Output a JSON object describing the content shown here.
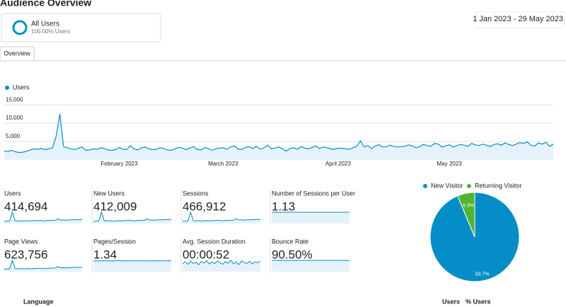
{
  "header": {
    "title": "Audience Overview",
    "segment": "All Users",
    "segment_sub": "100.00% Users",
    "date_range": "1 Jan 2023 - 29 May 2023",
    "tab": "Overview"
  },
  "chart_data": [
    {
      "type": "line",
      "categories": [
        null,
        null,
        null,
        null,
        null,
        null,
        null,
        null,
        null,
        null,
        null,
        null,
        null,
        null,
        null,
        null,
        null,
        null,
        null,
        null,
        null,
        null,
        null,
        null,
        null,
        null,
        null,
        null,
        null,
        null,
        null,
        "February 2023",
        null,
        null,
        null,
        null,
        null,
        null,
        null,
        null,
        null,
        null,
        null,
        null,
        null,
        null,
        null,
        null,
        null,
        null,
        null,
        null,
        null,
        null,
        null,
        null,
        null,
        null,
        null,
        "March 2023",
        null,
        null,
        null,
        null,
        null,
        null,
        null,
        null,
        null,
        null,
        null,
        null,
        null,
        null,
        null,
        null,
        null,
        null,
        null,
        null,
        null,
        null,
        null,
        null,
        null,
        null,
        null,
        null,
        null,
        null,
        "April 2023",
        null,
        null,
        null,
        null,
        null,
        null,
        null,
        null,
        null,
        null,
        null,
        null,
        null,
        null,
        null,
        null,
        null,
        null,
        null,
        null,
        null,
        null,
        null,
        null,
        null,
        null,
        null,
        null,
        null,
        "May 2023",
        null,
        null,
        null,
        null,
        null,
        null,
        null,
        null,
        null,
        null,
        null,
        null,
        null,
        null,
        null,
        null,
        null,
        null,
        null,
        null,
        null,
        null,
        null,
        null,
        null,
        null,
        null,
        null
      ],
      "series": [
        {
          "name": "Users",
          "color": "#058dc7",
          "values": [
            2400,
            2300,
            2600,
            2200,
            2000,
            2100,
            2300,
            2700,
            3000,
            2900,
            3100,
            2800,
            3000,
            3300,
            6500,
            12500,
            3600,
            3300,
            3000,
            2800,
            3200,
            3500,
            2600,
            2700,
            3000,
            2900,
            3300,
            3100,
            2700,
            2600,
            2800,
            3400,
            2900,
            2800,
            3900,
            3000,
            2700,
            3300,
            3500,
            3000,
            2800,
            2900,
            3300,
            3100,
            2700,
            2600,
            3000,
            3400,
            3200,
            2800,
            3200,
            3600,
            2900,
            2700,
            3300,
            3100,
            2600,
            3000,
            3200,
            3300,
            2900,
            3500,
            3800,
            3000,
            2800,
            3400,
            3600,
            3100,
            3700,
            2900,
            3300,
            4000,
            3000,
            3200,
            3500,
            3000,
            2400,
            3100,
            3300,
            2900,
            3600,
            3200,
            3000,
            3400,
            3800,
            3100,
            3500,
            3300,
            3000,
            2900,
            3200,
            3100,
            3000,
            2900,
            3300,
            3700,
            5200,
            3500,
            3900,
            3100,
            3800,
            4100,
            3500,
            3600,
            4000,
            3700,
            3500,
            3600,
            3700,
            4100,
            3800,
            3300,
            3600,
            4200,
            3900,
            3700,
            4500,
            4300,
            3500,
            3800,
            4100,
            3500,
            3900,
            4200,
            4000,
            3700,
            4500,
            4100,
            3900,
            4300,
            4000,
            3600,
            4200,
            4400,
            4000,
            4600,
            4200,
            3900,
            4300,
            4700,
            4500,
            4900,
            4000,
            3800,
            4600,
            4300,
            4800,
            3700,
            4300
          ]
        }
      ],
      "ylim": [
        0,
        16000
      ],
      "yticks": [
        {
          "value": 5000,
          "label": "5,000"
        },
        {
          "value": 10000,
          "label": "10,000"
        },
        {
          "value": 15000,
          "label": "15,000"
        }
      ],
      "grid": true
    },
    {
      "type": "pie",
      "categories": [
        "New Visitor",
        "Returning Visitor"
      ],
      "values": [
        93.7,
        6.3
      ],
      "value_labels": [
        "93.7%",
        "6.3%"
      ],
      "colors": [
        "#058dc7",
        "#50b432"
      ]
    }
  ],
  "metrics": [
    {
      "label": "Users",
      "value": "414,694",
      "spark": [
        2600,
        2500,
        2900,
        12500,
        3300,
        2900,
        3100,
        2800,
        3000,
        3200,
        2900,
        3300,
        3100,
        3500,
        3200,
        3000,
        3400,
        3300,
        3700,
        3500,
        5200,
        3800,
        3900,
        3700,
        4100,
        4000,
        4300,
        4200,
        4500,
        4300
      ]
    },
    {
      "label": "New Users",
      "value": "412,009",
      "spark": [
        2580,
        2480,
        2880,
        12400,
        3270,
        2880,
        3080,
        2780,
        2980,
        3180,
        2880,
        3270,
        3080,
        3470,
        3180,
        2980,
        3380,
        3270,
        3670,
        3470,
        5150,
        3770,
        3870,
        3670,
        4070,
        3970,
        4270,
        4170,
        4470,
        4270
      ]
    },
    {
      "label": "Sessions",
      "value": "466,912",
      "spark": [
        2900,
        2800,
        3200,
        13600,
        3700,
        3300,
        3500,
        3100,
        3400,
        3600,
        3200,
        3700,
        3500,
        3900,
        3600,
        3400,
        3800,
        3700,
        4100,
        3900,
        5800,
        4300,
        4400,
        4100,
        4600,
        4500,
        4800,
        4700,
        5000,
        4800
      ]
    },
    {
      "label": "Number of Sessions per User",
      "value": "1.13",
      "spark": [
        1.12,
        1.12,
        1.13,
        1.1,
        1.13,
        1.13,
        1.12,
        1.13,
        1.13,
        1.13,
        1.12,
        1.13,
        1.13,
        1.12,
        1.13,
        1.13,
        1.13,
        1.12,
        1.13,
        1.13,
        1.12,
        1.13,
        1.13,
        1.13,
        1.12,
        1.13,
        1.13,
        1.13,
        1.12,
        1.13
      ]
    },
    {
      "label": "Page Views",
      "value": "623,756",
      "spark": [
        3900,
        3800,
        4300,
        17000,
        4900,
        4400,
        4600,
        4200,
        4500,
        4800,
        4300,
        4900,
        4600,
        5200,
        4800,
        4500,
        5100,
        4900,
        5500,
        5200,
        7600,
        5700,
        5800,
        5500,
        6100,
        6000,
        6400,
        6300,
        6700,
        6400
      ]
    },
    {
      "label": "Pages/Session",
      "value": "1.34",
      "spark": [
        1.33,
        1.35,
        1.34,
        1.32,
        1.36,
        1.34,
        1.33,
        1.35,
        1.34,
        1.4,
        1.33,
        1.34,
        1.35,
        1.34,
        1.33,
        1.34,
        1.36,
        1.34,
        1.33,
        1.35,
        1.34,
        1.34,
        1.33,
        1.35,
        1.34,
        1.36,
        1.34,
        1.33,
        1.35,
        1.34
      ]
    },
    {
      "label": "Avg. Session Duration",
      "value": "00:00:52",
      "spark": [
        45,
        58,
        42,
        62,
        48,
        55,
        40,
        60,
        50,
        64,
        44,
        57,
        47,
        61,
        52,
        43,
        59,
        49,
        66,
        46,
        56,
        41,
        63,
        53,
        48,
        60,
        45,
        58,
        51,
        62
      ]
    },
    {
      "label": "Bounce Rate",
      "value": "90.50%",
      "spark": [
        90.4,
        90.6,
        90.5,
        91,
        90.5,
        90.4,
        90.6,
        90.5,
        90.5,
        90.4,
        90.6,
        90.5,
        90.5,
        90.4,
        90.6,
        90.5,
        90.5,
        90.4,
        90.6,
        90.5,
        90.3,
        90.5,
        90.6,
        90.5,
        90.4,
        90.5,
        90.6,
        90.5,
        90.4,
        90.5
      ]
    }
  ],
  "table": {
    "headers": [
      "Language",
      "Users",
      "% Users"
    ]
  }
}
